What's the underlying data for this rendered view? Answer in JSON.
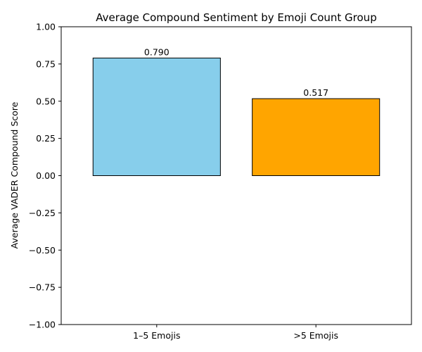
{
  "chart_data": {
    "type": "bar",
    "title": "Average Compound Sentiment by Emoji Count Group",
    "xlabel": "",
    "ylabel": "Average VADER Compound Score",
    "categories": [
      "1–5 Emojis",
      ">5 Emojis"
    ],
    "values": [
      0.79,
      0.517
    ],
    "data_labels": [
      "0.790",
      "0.517"
    ],
    "colors": [
      "#87CEEB",
      "#FFA500"
    ],
    "edge_color": "#000000",
    "ylim": [
      -1.0,
      1.0
    ],
    "yticks": [
      -1.0,
      -0.75,
      -0.5,
      -0.25,
      0.0,
      0.25,
      0.5,
      0.75,
      1.0
    ],
    "ytick_labels": [
      "−1.00",
      "−0.75",
      "−0.50",
      "−0.25",
      "0.00",
      "0.25",
      "0.50",
      "0.75",
      "1.00"
    ],
    "grid": false,
    "legend": false
  }
}
